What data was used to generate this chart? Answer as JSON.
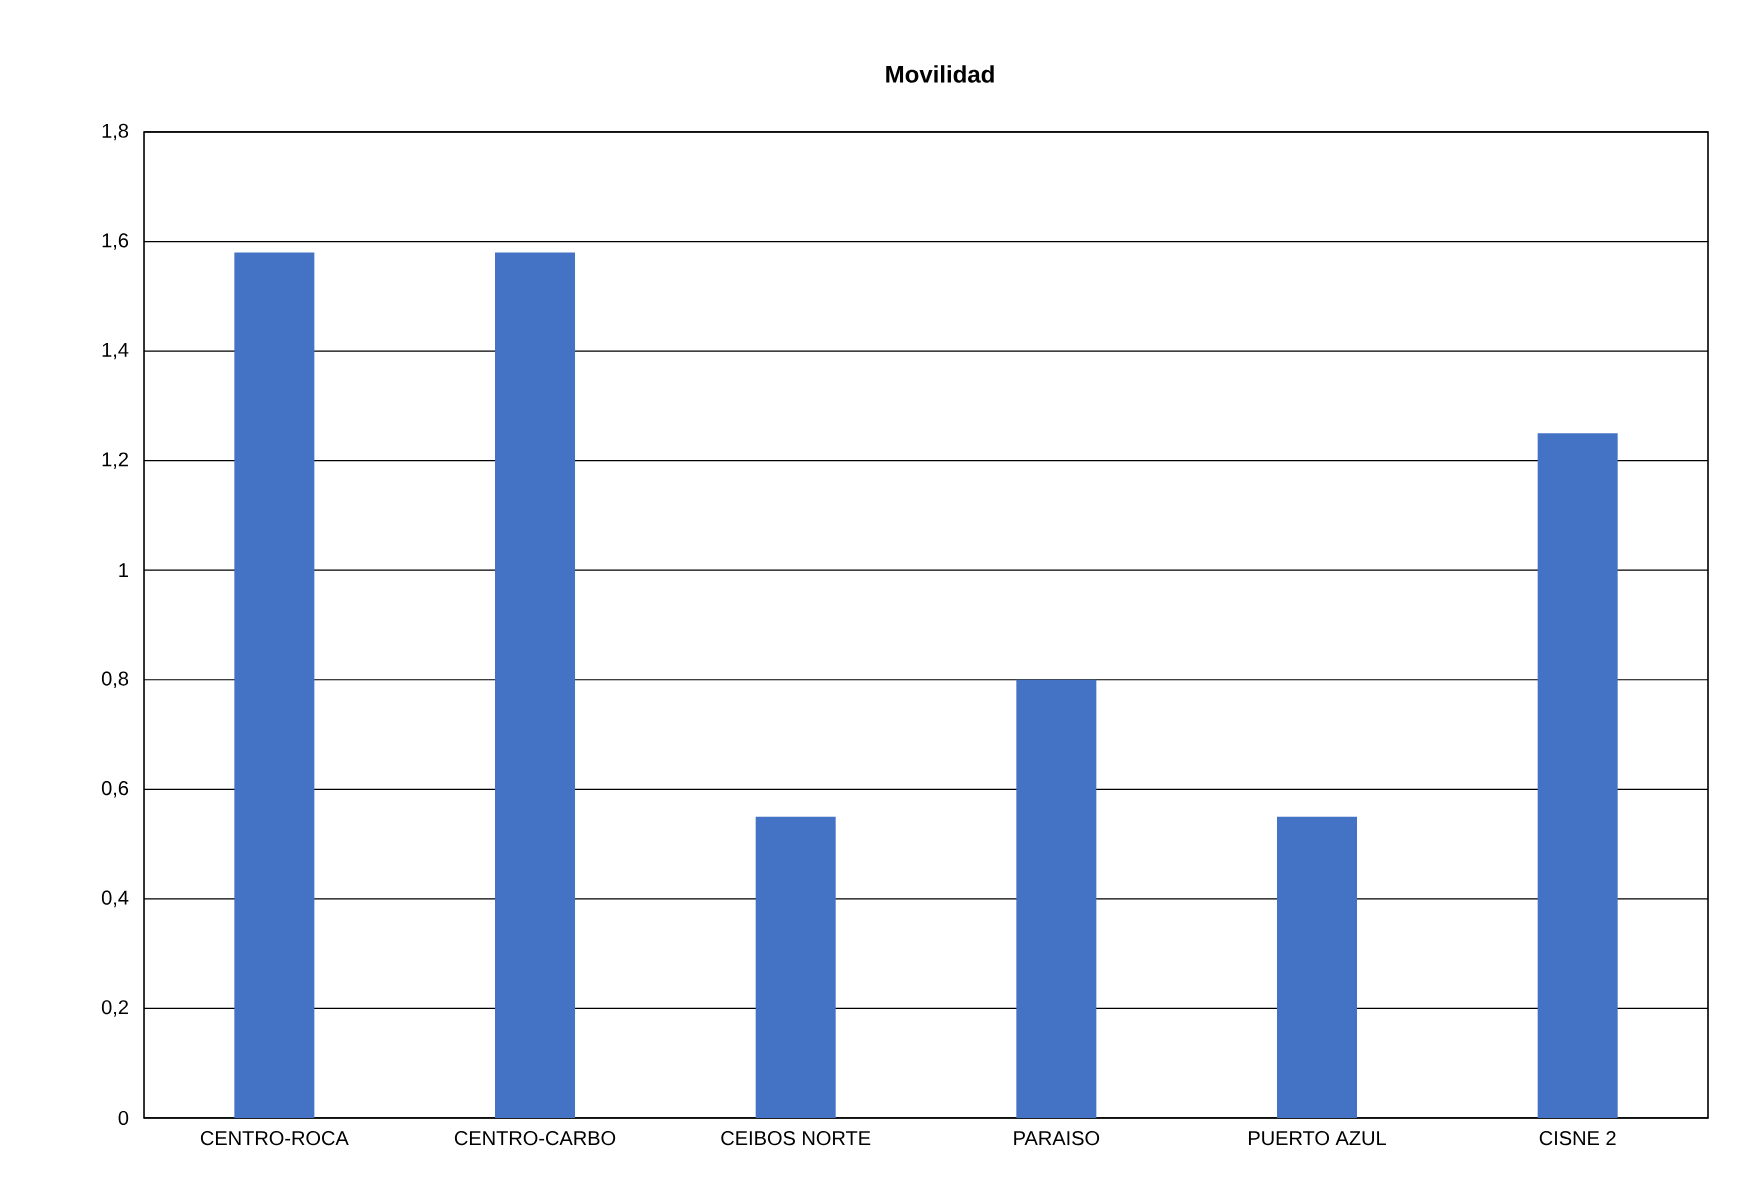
{
  "chart_data": {
    "type": "bar",
    "title": "Movilidad",
    "categories": [
      "CENTRO-ROCA",
      "CENTRO-CARBO",
      "CEIBOS NORTE",
      "PARAISO",
      "PUERTO AZUL",
      "CISNE 2"
    ],
    "values": [
      1.58,
      1.58,
      0.55,
      0.8,
      0.55,
      1.25
    ],
    "color": "#4472c4",
    "ylim": [
      0,
      1.8
    ],
    "yticks": [
      0,
      {
        "value": 0.2,
        "label": "0,2"
      },
      {
        "value": 0.4,
        "label": "0,4"
      },
      {
        "value": 0.6,
        "label": "0,6"
      },
      {
        "value": 0.8,
        "label": "0,8"
      },
      1,
      {
        "value": 1.2,
        "label": "1,2"
      },
      {
        "value": 1.4,
        "label": "1,4"
      },
      {
        "value": 1.6,
        "label": "1,6"
      },
      {
        "value": 1.8,
        "label": "1,8"
      }
    ],
    "grid": "y"
  }
}
